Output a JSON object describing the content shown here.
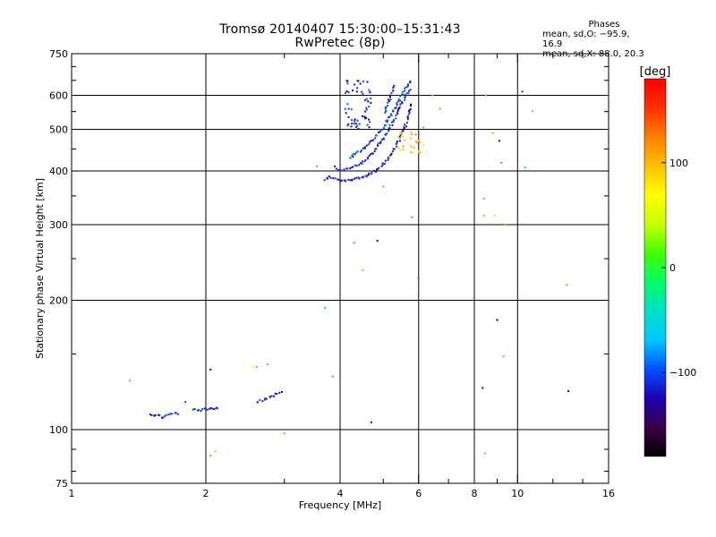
{
  "title": "Tromsø 20140407 15:30:00–15:31:43",
  "subtitle": "RwPretec (8p)",
  "stats": {
    "heading": "Phases",
    "line1": "mean, sd,O: −95.9, 16.9",
    "line2": "mean, sd,X:  88.0, 20.3"
  },
  "chart_data": {
    "type": "scatter",
    "xlabel": "Frequency [MHz]",
    "ylabel": "Stationary phase Virtual Height [km]",
    "xscale": "log",
    "yscale": "log",
    "xlim": [
      1,
      16
    ],
    "ylim": [
      75,
      750
    ],
    "x_ticks": [
      1,
      2,
      4,
      6,
      8,
      10,
      16
    ],
    "x_tick_labels": [
      "1",
      "2",
      "4",
      "6",
      "8",
      "10",
      "16"
    ],
    "y_ticks": [
      75,
      100,
      200,
      300,
      400,
      500,
      600,
      750
    ],
    "y_tick_labels": [
      "75",
      "100",
      "200",
      "300",
      "400",
      "500",
      "600",
      "750"
    ],
    "grid": true,
    "colorbar": {
      "label": "[deg]",
      "range": [
        -180,
        180
      ],
      "ticks": [
        100,
        0,
        -100
      ],
      "tick_labels": [
        "100",
        "0",
        "−100"
      ],
      "colormap": [
        "#000000",
        "#3a0046",
        "#1f00b4",
        "#0050ff",
        "#00c8ff",
        "#00e0c8",
        "#00ff64",
        "#40ff00",
        "#c8ff00",
        "#ffff00",
        "#ffc000",
        "#ff8000",
        "#ff3000",
        "#ff0000"
      ]
    },
    "series": [
      {
        "kind": "curve",
        "x": [
          1.5,
          1.55,
          1.6,
          1.65,
          1.7,
          1.75
        ],
        "y": [
          108,
          108,
          107,
          108,
          109,
          109
        ],
        "phase": -110
      },
      {
        "kind": "curve",
        "x": [
          1.88,
          1.95,
          2.02,
          2.08,
          2.15
        ],
        "y": [
          111,
          111,
          112,
          112,
          113
        ],
        "phase": -110
      },
      {
        "kind": "curve",
        "x": [
          2.6,
          2.7,
          2.8,
          2.9,
          2.98
        ],
        "y": [
          116,
          117,
          119,
          121,
          123
        ],
        "phase": -110
      },
      {
        "kind": "curve",
        "x": [
          3.7,
          3.8,
          3.9,
          4.0,
          4.1,
          4.2,
          4.3,
          4.4,
          4.5,
          4.6,
          4.7,
          4.8,
          4.9,
          5.0,
          5.1,
          5.2,
          5.3,
          5.4,
          5.5,
          5.6,
          5.7,
          5.8
        ],
        "y": [
          383,
          387,
          384,
          381,
          381,
          381,
          382,
          384,
          386,
          390,
          394,
          400,
          407,
          415,
          425,
          437,
          452,
          468,
          488,
          510,
          540,
          575
        ],
        "phase": -115
      },
      {
        "kind": "curve",
        "x": [
          3.9,
          4.0,
          4.2,
          4.4,
          4.6,
          4.8,
          5.0,
          5.2,
          5.4,
          5.6,
          5.75
        ],
        "y": [
          408,
          402,
          404,
          413,
          428,
          448,
          475,
          510,
          550,
          595,
          625
        ],
        "phase": -110
      },
      {
        "kind": "curve",
        "x": [
          4.2,
          4.4,
          4.6,
          4.8,
          5.0,
          5.2,
          5.4,
          5.6,
          5.8
        ],
        "y": [
          430,
          442,
          458,
          478,
          505,
          540,
          580,
          620,
          650
        ],
        "phase": -105
      },
      {
        "kind": "curve",
        "x": [
          5.05,
          5.1,
          5.2,
          5.3
        ],
        "y": [
          545,
          570,
          600,
          640
        ],
        "phase": -110
      },
      {
        "kind": "blob",
        "x": [
          4.1,
          4.7
        ],
        "y": [
          500,
          650
        ],
        "phase": -110
      },
      {
        "kind": "blob",
        "x": [
          5.4,
          6.2
        ],
        "y": [
          440,
          500
        ],
        "phase": 100
      },
      {
        "kind": "points",
        "x": [
          1.35,
          1.8,
          2.05,
          2.05,
          2.1,
          2.55,
          2.6,
          2.75,
          3.0,
          3.55,
          3.7,
          3.85,
          4.3,
          4.5,
          4.7,
          4.85,
          5.0,
          5.8,
          6.0,
          6.15,
          6.45,
          6.7,
          8.35,
          8.4,
          8.4,
          8.45,
          8.5,
          8.8,
          8.9,
          9.0,
          9.1,
          9.2,
          9.3,
          9.4,
          10.25,
          10.4,
          10.8,
          12.9,
          13.0
        ],
        "y": [
          130,
          116,
          138,
          87,
          89,
          140,
          140,
          142,
          98,
          410,
          192,
          133,
          272,
          235,
          104,
          275,
          368,
          312,
          225,
          505,
          600,
          558,
          125,
          345,
          315,
          88,
          600,
          490,
          315,
          180,
          470,
          418,
          148,
          300,
          612,
          408,
          552,
          217,
          123
        ],
        "phase": [
          120,
          -100,
          -150,
          120,
          100,
          60,
          120,
          120,
          120,
          120,
          -20,
          130,
          130,
          20,
          -110,
          -150,
          120,
          130,
          150,
          120,
          110,
          120,
          -150,
          120,
          110,
          120,
          120,
          110,
          80,
          -170,
          -150,
          130,
          0,
          110,
          -110,
          -40,
          110,
          130,
          -160
        ]
      }
    ]
  }
}
